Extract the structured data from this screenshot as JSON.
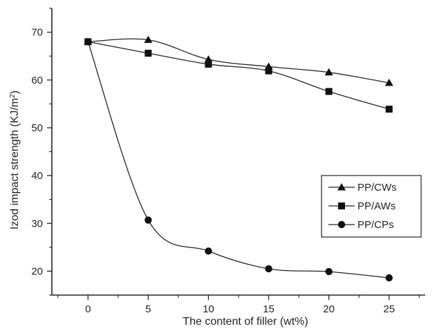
{
  "chart_data": {
    "type": "line",
    "title": "",
    "xlabel": "The content of filler (wt%)",
    "ylabel": "Izod impact strength (KJ/m",
    "ylabel_superscript": "2",
    "ylabel_suffix": ")",
    "x": [
      0,
      5,
      10,
      15,
      20,
      25
    ],
    "xlim": [
      -3,
      28
    ],
    "ylim": [
      15,
      75
    ],
    "xticks": [
      0,
      5,
      10,
      15,
      20,
      25
    ],
    "yticks": [
      20,
      30,
      40,
      50,
      60,
      70
    ],
    "grid": false,
    "legend_position": "right",
    "series": [
      {
        "name": "PP/CWs",
        "marker": "triangle",
        "values": [
          68.0,
          68.4,
          64.3,
          62.8,
          61.6,
          59.4
        ]
      },
      {
        "name": "PP/AWs",
        "marker": "square",
        "values": [
          68.0,
          65.6,
          63.3,
          61.9,
          57.6,
          53.9
        ]
      },
      {
        "name": "PP/CPs",
        "marker": "circle",
        "values": [
          68.0,
          30.7,
          24.2,
          20.5,
          19.9,
          18.6
        ]
      }
    ],
    "colors": {
      "line": "#222222",
      "marker": "#111111",
      "axis": "#222222"
    }
  }
}
